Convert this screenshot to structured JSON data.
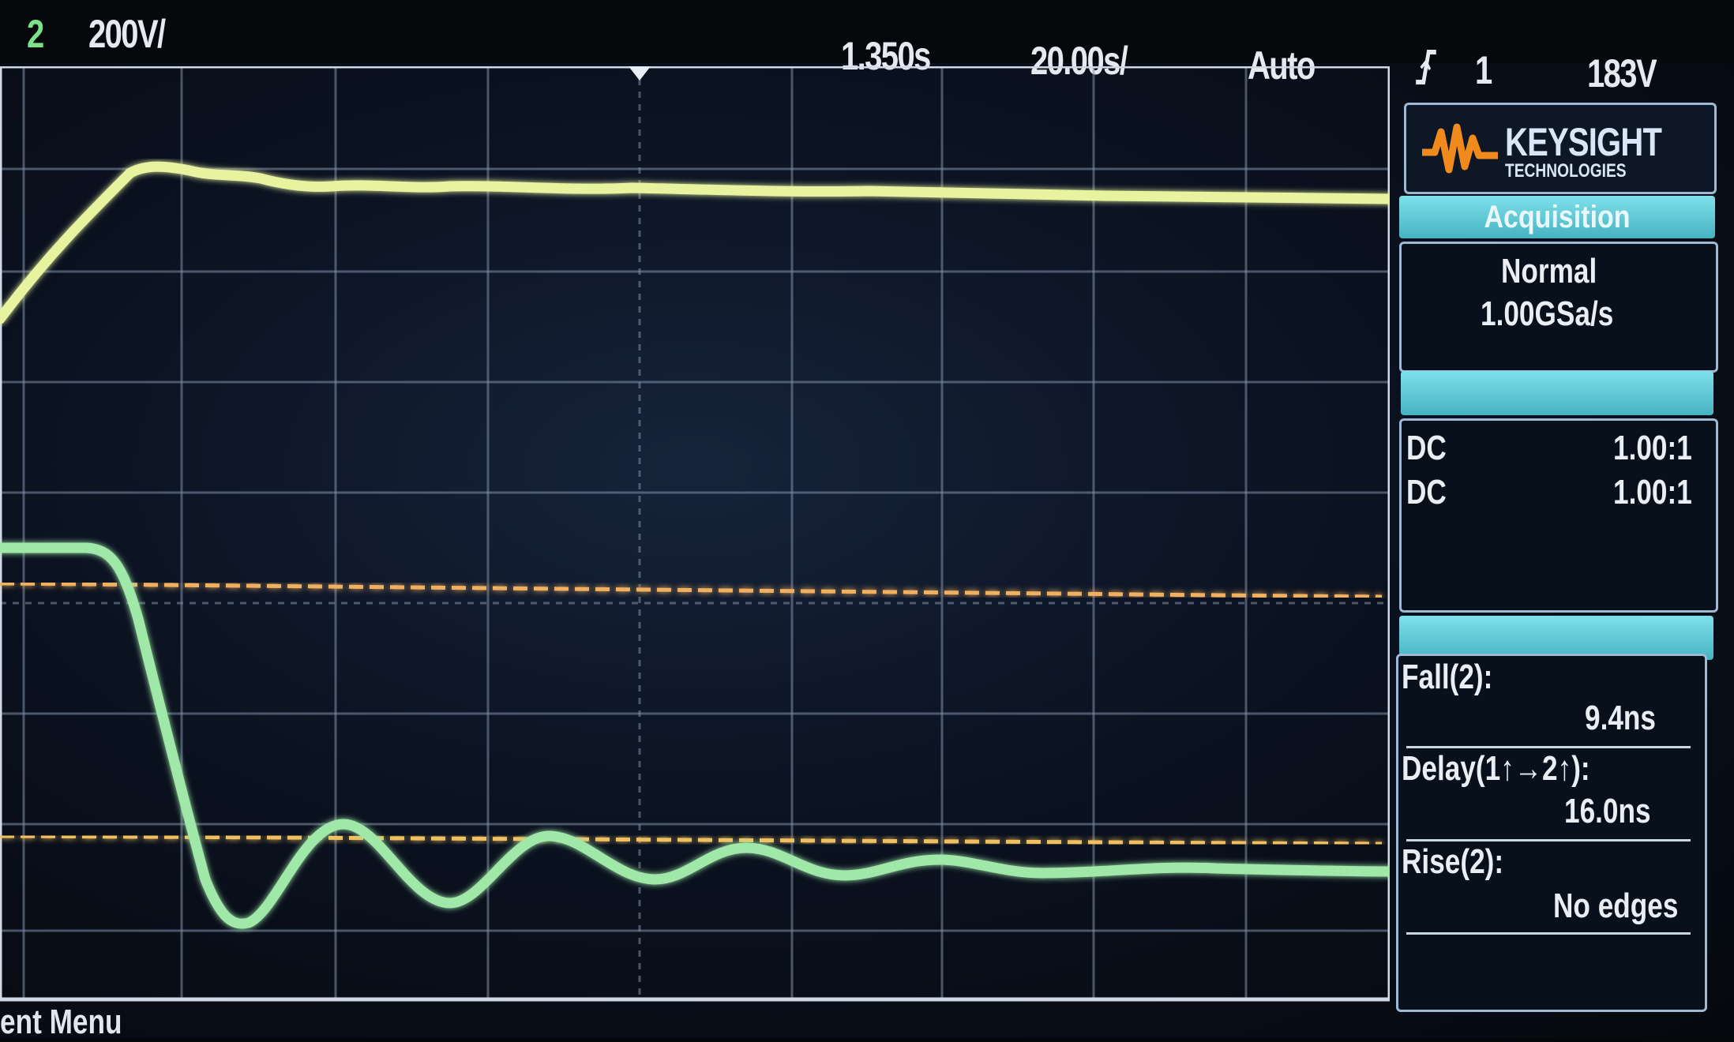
{
  "topbar": {
    "channel": "2",
    "channel_scale": "200V/",
    "trigger_delay": "1.350s",
    "timebase": "20.00s/",
    "trigger_mode": "Auto",
    "trigger_edge_icon": "rising-edge-icon",
    "trigger_source": "1",
    "trigger_level": "183V"
  },
  "menu_label": "ent Menu",
  "panel": {
    "logo_line1": "KEYSIGHT",
    "logo_line2": "TECHNOLOGIES",
    "acquisition_title": "Acquisition",
    "acquisition_mode": "Normal",
    "sample_rate": "1.00GSa/s",
    "probe_rows": [
      {
        "coupling": "DC",
        "ratio": "1.00:1"
      },
      {
        "coupling": "DC",
        "ratio": "1.00:1"
      }
    ],
    "measurements": [
      {
        "label": "Fall(2):",
        "value": "9.4ns"
      },
      {
        "label": "Delay(1↑→2↑):",
        "value": "16.0ns"
      },
      {
        "label": "Rise(2):",
        "value": "No edges"
      }
    ]
  },
  "colors": {
    "channel1": "#e8f3a0",
    "channel2": "#9fe8a8",
    "cursor": "#f0b060",
    "grid": "#7f90a8",
    "accent_bar": "#6fd6e2"
  }
}
